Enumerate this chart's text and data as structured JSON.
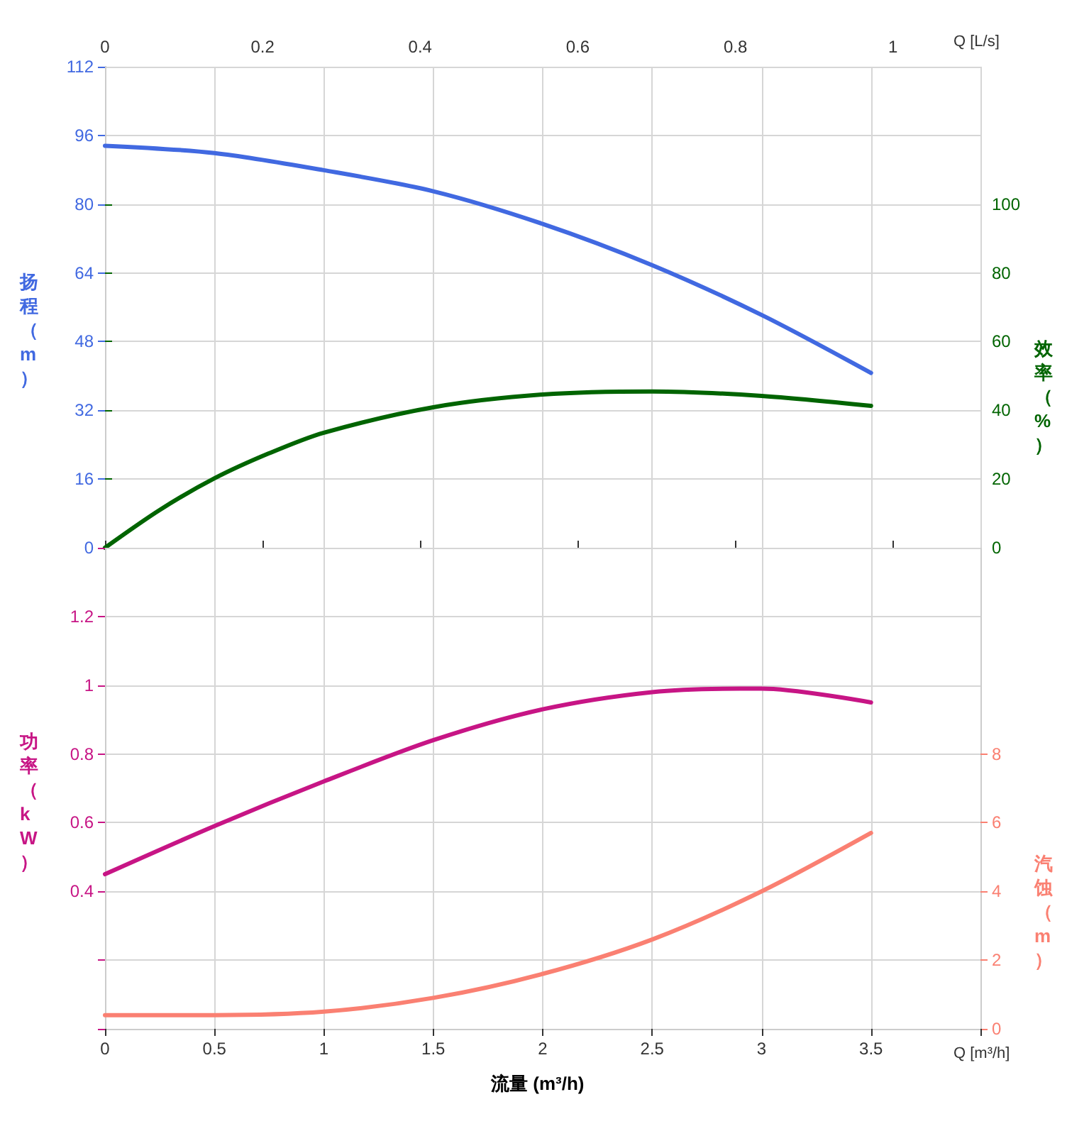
{
  "chart_data": [
    {
      "type": "line",
      "x2label": "Q [L/s]",
      "ylabel": "扬程（m）",
      "y2label": "效率（%）",
      "xlim": [
        0,
        4
      ],
      "xticks": [
        0,
        0.5,
        1,
        1.5,
        2,
        2.5,
        3,
        3.5
      ],
      "x2lim": [
        0,
        1.111
      ],
      "x2ticks": [
        0,
        0.2,
        0.4,
        0.6,
        0.8,
        1
      ],
      "ylim": [
        0,
        112
      ],
      "yticks": [
        0,
        16,
        32,
        48,
        64,
        80,
        96,
        112
      ],
      "y2lim": [
        0,
        140
      ],
      "y2ticks": [
        0,
        20,
        40,
        60,
        80,
        100
      ],
      "tick_labels": "y",
      "grid": true,
      "marker": "none",
      "series": [
        {
          "axis": "y",
          "color": "#4169e1",
          "x": [
            0,
            0.5,
            1,
            1.5,
            2,
            2.5,
            3,
            3.5
          ],
          "values": [
            93.6,
            91.9,
            87.9,
            83,
            75.4,
            65.8,
            54.2,
            40.7
          ]
        },
        {
          "axis": "y2",
          "color": "#006400",
          "x": [
            0,
            0.25,
            0.5,
            0.75,
            1,
            1.5,
            2,
            2.5,
            3,
            3.5
          ],
          "values": [
            0,
            11,
            20.2,
            27.5,
            33.5,
            40.9,
            44.6,
            45.5,
            44.2,
            41.3
          ]
        }
      ]
    },
    {
      "type": "line",
      "xlabel": "流量 (m³/h)",
      "ylabel": "功率（kW）",
      "y2label": "汽蚀（m）",
      "annotations": [
        "Q [m³/h]"
      ],
      "xlim": [
        0,
        4
      ],
      "xticks": [
        0,
        0.5,
        1,
        1.5,
        2,
        2.5,
        3,
        3.5
      ],
      "ylim": [
        0,
        1.4
      ],
      "yticks": [
        0.4,
        0.6,
        0.8,
        1,
        1.2
      ],
      "y2lim": [
        0,
        14
      ],
      "y2ticks": [
        0,
        2,
        4,
        6,
        8
      ],
      "grid": true,
      "marker": "none",
      "series": [
        {
          "axis": "y",
          "color": "#c71585",
          "x": [
            0,
            0.5,
            1,
            1.5,
            2,
            2.5,
            2.9,
            3,
            3.5
          ],
          "values": [
            0.45,
            0.59,
            0.72,
            0.84,
            0.93,
            0.98,
            0.99,
            0.99,
            0.95
          ]
        },
        {
          "axis": "y2",
          "color": "#fa8072",
          "x": [
            0,
            0.5,
            1,
            1.5,
            2,
            2.5,
            3,
            3.5
          ],
          "values": [
            0.4,
            0.4,
            0.5,
            0.9,
            1.6,
            2.6,
            4,
            5.7
          ]
        }
      ]
    }
  ]
}
